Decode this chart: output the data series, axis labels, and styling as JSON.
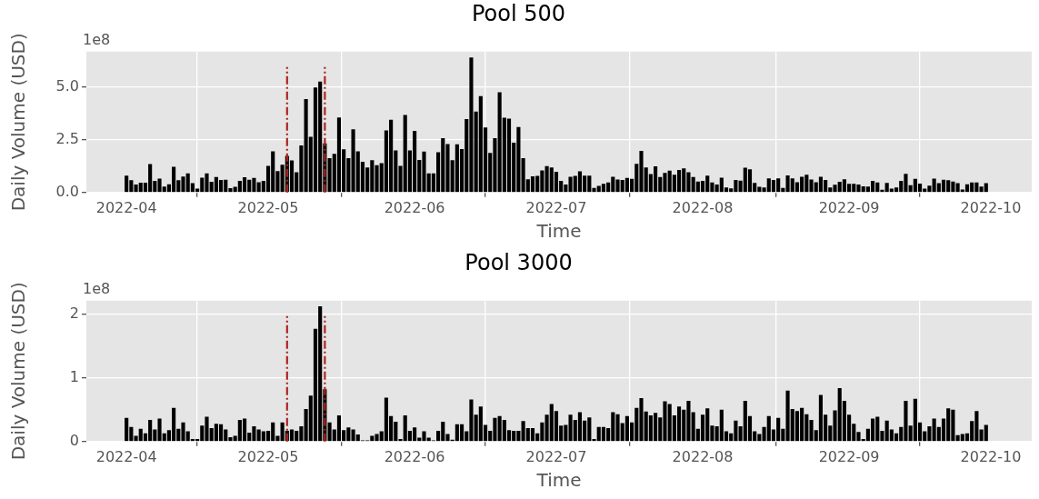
{
  "chart_data": [
    {
      "type": "bar",
      "title": "Pool 500",
      "xlabel": "Time",
      "ylabel": "Daily Volume (USD)",
      "annotations": [
        "1e8"
      ],
      "color": "#000000",
      "grid": true,
      "xlim": [
        "2022-03-23T12:00",
        "2022-10-09T16:00"
      ],
      "xticks": [
        "2022-04",
        "2022-05",
        "2022-06",
        "2022-07",
        "2022-08",
        "2022-09",
        "2022-10"
      ],
      "ylim": [
        0,
        6.67
      ],
      "yticks": [
        {
          "value": 0,
          "label": "0.0"
        },
        {
          "value": 2.5,
          "label": "2.5"
        },
        {
          "value": 5,
          "label": "5.0"
        }
      ],
      "ref_lines": [
        {
          "axis": "x",
          "value": "2022-05-05",
          "color": "#b22222",
          "line_style": "dashdot"
        },
        {
          "axis": "x",
          "value": "2022-05-13",
          "color": "#b22222",
          "line_style": "dashdot"
        }
      ],
      "x": [
        "2022-04-01",
        "2022-04-02",
        "2022-04-03",
        "2022-04-04",
        "2022-04-05",
        "2022-04-06",
        "2022-04-07",
        "2022-04-08",
        "2022-04-09",
        "2022-04-10",
        "2022-04-11",
        "2022-04-12",
        "2022-04-13",
        "2022-04-14",
        "2022-04-15",
        "2022-04-16",
        "2022-04-17",
        "2022-04-18",
        "2022-04-19",
        "2022-04-20",
        "2022-04-21",
        "2022-04-22",
        "2022-04-23",
        "2022-04-24",
        "2022-04-25",
        "2022-04-26",
        "2022-04-27",
        "2022-04-28",
        "2022-04-29",
        "2022-04-30",
        "2022-05-01",
        "2022-05-02",
        "2022-05-03",
        "2022-05-04",
        "2022-05-05",
        "2022-05-06",
        "2022-05-07",
        "2022-05-08",
        "2022-05-09",
        "2022-05-10",
        "2022-05-11",
        "2022-05-12",
        "2022-05-13",
        "2022-05-14",
        "2022-05-15",
        "2022-05-16",
        "2022-05-17",
        "2022-05-18",
        "2022-05-19",
        "2022-05-20",
        "2022-05-21",
        "2022-05-22",
        "2022-05-23",
        "2022-05-24",
        "2022-05-25",
        "2022-05-26",
        "2022-05-27",
        "2022-05-28",
        "2022-05-29",
        "2022-05-30",
        "2022-05-31",
        "2022-06-01",
        "2022-06-02",
        "2022-06-03",
        "2022-06-04",
        "2022-06-05",
        "2022-06-06",
        "2022-06-07",
        "2022-06-08",
        "2022-06-09",
        "2022-06-10",
        "2022-06-11",
        "2022-06-12",
        "2022-06-13",
        "2022-06-14",
        "2022-06-15",
        "2022-06-16",
        "2022-06-17",
        "2022-06-18",
        "2022-06-19",
        "2022-06-20",
        "2022-06-21",
        "2022-06-22",
        "2022-06-23",
        "2022-06-24",
        "2022-06-25",
        "2022-06-26",
        "2022-06-27",
        "2022-06-28",
        "2022-06-29",
        "2022-06-30",
        "2022-07-01",
        "2022-07-02",
        "2022-07-03",
        "2022-07-04",
        "2022-07-05",
        "2022-07-06",
        "2022-07-07",
        "2022-07-08",
        "2022-07-09",
        "2022-07-10",
        "2022-07-11",
        "2022-07-12",
        "2022-07-13",
        "2022-07-14",
        "2022-07-15",
        "2022-07-16",
        "2022-07-17",
        "2022-07-18",
        "2022-07-19",
        "2022-07-20",
        "2022-07-21",
        "2022-07-22",
        "2022-07-23",
        "2022-07-24",
        "2022-07-25",
        "2022-07-26",
        "2022-07-27",
        "2022-07-28",
        "2022-07-29",
        "2022-07-30",
        "2022-07-31",
        "2022-08-01",
        "2022-08-02",
        "2022-08-03",
        "2022-08-04",
        "2022-08-05",
        "2022-08-06",
        "2022-08-07",
        "2022-08-08",
        "2022-08-09",
        "2022-08-10",
        "2022-08-11",
        "2022-08-12",
        "2022-08-13",
        "2022-08-14",
        "2022-08-15",
        "2022-08-16",
        "2022-08-17",
        "2022-08-18",
        "2022-08-19",
        "2022-08-20",
        "2022-08-21",
        "2022-08-22",
        "2022-08-23",
        "2022-08-24",
        "2022-08-25",
        "2022-08-26",
        "2022-08-27",
        "2022-08-28",
        "2022-08-29",
        "2022-08-30",
        "2022-08-31",
        "2022-09-01",
        "2022-09-02",
        "2022-09-03",
        "2022-09-04",
        "2022-09-05",
        "2022-09-06",
        "2022-09-07",
        "2022-09-08",
        "2022-09-09",
        "2022-09-10",
        "2022-09-11",
        "2022-09-12",
        "2022-09-13",
        "2022-09-14",
        "2022-09-15",
        "2022-09-16",
        "2022-09-17",
        "2022-09-18",
        "2022-09-19",
        "2022-09-20",
        "2022-09-21",
        "2022-09-22",
        "2022-09-23",
        "2022-09-24",
        "2022-09-25",
        "2022-09-26",
        "2022-09-27",
        "2022-09-28",
        "2022-09-29",
        "2022-09-30"
      ],
      "values": [
        0.8,
        0.58,
        0.38,
        0.46,
        0.46,
        1.35,
        0.55,
        0.66,
        0.28,
        0.39,
        1.22,
        0.58,
        0.76,
        0.91,
        0.44,
        0.18,
        0.7,
        0.91,
        0.51,
        0.73,
        0.59,
        0.6,
        0.21,
        0.27,
        0.55,
        0.72,
        0.6,
        0.69,
        0.49,
        0.55,
        1.26,
        1.95,
        1.01,
        1.31,
        1.73,
        1.52,
        0.96,
        2.23,
        4.42,
        2.64,
        4.97,
        5.25,
        2.33,
        1.63,
        1.83,
        3.55,
        2.05,
        1.63,
        2.99,
        1.95,
        1.45,
        1.19,
        1.53,
        1.29,
        1.39,
        2.94,
        3.44,
        1.99,
        1.26,
        3.67,
        1.99,
        2.92,
        1.54,
        1.94,
        0.91,
        0.91,
        1.91,
        2.57,
        2.29,
        1.53,
        2.28,
        2.06,
        3.48,
        6.39,
        3.83,
        4.56,
        3.08,
        1.87,
        2.57,
        4.75,
        3.54,
        3.5,
        2.36,
        3.1,
        1.63,
        0.63,
        0.77,
        0.79,
        1.05,
        1.25,
        1.19,
        0.98,
        0.55,
        0.38,
        0.74,
        0.79,
        1.0,
        0.8,
        0.8,
        0.22,
        0.31,
        0.41,
        0.48,
        0.74,
        0.62,
        0.59,
        0.69,
        0.65,
        1.36,
        1.97,
        1.19,
        0.87,
        1.24,
        0.73,
        0.93,
        1.04,
        0.84,
        1.07,
        1.14,
        0.96,
        0.73,
        0.52,
        0.55,
        0.8,
        0.48,
        0.38,
        0.7,
        0.24,
        0.2,
        0.59,
        0.56,
        1.17,
        1.1,
        0.45,
        0.27,
        0.24,
        0.67,
        0.59,
        0.67,
        0.22,
        0.81,
        0.67,
        0.49,
        0.74,
        0.84,
        0.62,
        0.49,
        0.74,
        0.59,
        0.24,
        0.37,
        0.51,
        0.63,
        0.41,
        0.41,
        0.38,
        0.29,
        0.28,
        0.55,
        0.48,
        0.13,
        0.45,
        0.18,
        0.24,
        0.55,
        0.88,
        0.35,
        0.65,
        0.42,
        0.18,
        0.32,
        0.66,
        0.44,
        0.6,
        0.58,
        0.52,
        0.44,
        0.14,
        0.39,
        0.48,
        0.48,
        0.28,
        0.44
      ]
    },
    {
      "type": "bar",
      "title": "Pool 3000",
      "xlabel": "Time",
      "ylabel": "Daily Volume (USD)",
      "annotations": [
        "1e8"
      ],
      "color": "#000000",
      "grid": true,
      "xlim": [
        "2022-03-23T12:00",
        "2022-10-09T16:00"
      ],
      "xticks": [
        "2022-04",
        "2022-05",
        "2022-06",
        "2022-07",
        "2022-08",
        "2022-09",
        "2022-10"
      ],
      "ylim": [
        0,
        2.21
      ],
      "yticks": [
        0,
        1,
        2
      ],
      "ref_lines": [
        {
          "axis": "x",
          "value": "2022-05-05",
          "color": "#b22222",
          "line_style": "dashdot"
        },
        {
          "axis": "x",
          "value": "2022-05-13",
          "color": "#b22222",
          "line_style": "dashdot"
        }
      ],
      "x": [
        "2022-04-01",
        "2022-04-02",
        "2022-04-03",
        "2022-04-04",
        "2022-04-05",
        "2022-04-06",
        "2022-04-07",
        "2022-04-08",
        "2022-04-09",
        "2022-04-10",
        "2022-04-11",
        "2022-04-12",
        "2022-04-13",
        "2022-04-14",
        "2022-04-15",
        "2022-04-16",
        "2022-04-17",
        "2022-04-18",
        "2022-04-19",
        "2022-04-20",
        "2022-04-21",
        "2022-04-22",
        "2022-04-23",
        "2022-04-24",
        "2022-04-25",
        "2022-04-26",
        "2022-04-27",
        "2022-04-28",
        "2022-04-29",
        "2022-04-30",
        "2022-05-01",
        "2022-05-02",
        "2022-05-03",
        "2022-05-04",
        "2022-05-05",
        "2022-05-06",
        "2022-05-07",
        "2022-05-08",
        "2022-05-09",
        "2022-05-10",
        "2022-05-11",
        "2022-05-12",
        "2022-05-13",
        "2022-05-14",
        "2022-05-15",
        "2022-05-16",
        "2022-05-17",
        "2022-05-18",
        "2022-05-19",
        "2022-05-20",
        "2022-05-21",
        "2022-05-22",
        "2022-05-23",
        "2022-05-24",
        "2022-05-25",
        "2022-05-26",
        "2022-05-27",
        "2022-05-28",
        "2022-05-29",
        "2022-05-30",
        "2022-05-31",
        "2022-06-01",
        "2022-06-02",
        "2022-06-03",
        "2022-06-04",
        "2022-06-05",
        "2022-06-06",
        "2022-06-07",
        "2022-06-08",
        "2022-06-09",
        "2022-06-10",
        "2022-06-11",
        "2022-06-12",
        "2022-06-13",
        "2022-06-14",
        "2022-06-15",
        "2022-06-16",
        "2022-06-17",
        "2022-06-18",
        "2022-06-19",
        "2022-06-20",
        "2022-06-21",
        "2022-06-22",
        "2022-06-23",
        "2022-06-24",
        "2022-06-25",
        "2022-06-26",
        "2022-06-27",
        "2022-06-28",
        "2022-06-29",
        "2022-06-30",
        "2022-07-01",
        "2022-07-02",
        "2022-07-03",
        "2022-07-04",
        "2022-07-05",
        "2022-07-06",
        "2022-07-07",
        "2022-07-08",
        "2022-07-09",
        "2022-07-10",
        "2022-07-11",
        "2022-07-12",
        "2022-07-13",
        "2022-07-14",
        "2022-07-15",
        "2022-07-16",
        "2022-07-17",
        "2022-07-18",
        "2022-07-19",
        "2022-07-20",
        "2022-07-21",
        "2022-07-22",
        "2022-07-23",
        "2022-07-24",
        "2022-07-25",
        "2022-07-26",
        "2022-07-27",
        "2022-07-28",
        "2022-07-29",
        "2022-07-30",
        "2022-07-31",
        "2022-08-01",
        "2022-08-02",
        "2022-08-03",
        "2022-08-04",
        "2022-08-05",
        "2022-08-06",
        "2022-08-07",
        "2022-08-08",
        "2022-08-09",
        "2022-08-10",
        "2022-08-11",
        "2022-08-12",
        "2022-08-13",
        "2022-08-14",
        "2022-08-15",
        "2022-08-16",
        "2022-08-17",
        "2022-08-18",
        "2022-08-19",
        "2022-08-20",
        "2022-08-21",
        "2022-08-22",
        "2022-08-23",
        "2022-08-24",
        "2022-08-25",
        "2022-08-26",
        "2022-08-27",
        "2022-08-28",
        "2022-08-29",
        "2022-08-30",
        "2022-08-31",
        "2022-09-01",
        "2022-09-02",
        "2022-09-03",
        "2022-09-04",
        "2022-09-05",
        "2022-09-06",
        "2022-09-07",
        "2022-09-08",
        "2022-09-09",
        "2022-09-10",
        "2022-09-11",
        "2022-09-12",
        "2022-09-13",
        "2022-09-14",
        "2022-09-15",
        "2022-09-16",
        "2022-09-17",
        "2022-09-18",
        "2022-09-19",
        "2022-09-20",
        "2022-09-21",
        "2022-09-22",
        "2022-09-23",
        "2022-09-24",
        "2022-09-25",
        "2022-09-26",
        "2022-09-27",
        "2022-09-28",
        "2022-09-29",
        "2022-09-30"
      ],
      "values": [
        0.37,
        0.23,
        0.09,
        0.2,
        0.13,
        0.34,
        0.19,
        0.36,
        0.13,
        0.18,
        0.53,
        0.2,
        0.3,
        0.16,
        0.04,
        0.04,
        0.25,
        0.39,
        0.21,
        0.28,
        0.27,
        0.19,
        0.07,
        0.09,
        0.34,
        0.36,
        0.14,
        0.24,
        0.19,
        0.16,
        0.17,
        0.3,
        0.09,
        0.3,
        0.17,
        0.19,
        0.17,
        0.24,
        0.51,
        0.72,
        1.77,
        2.12,
        0.82,
        0.3,
        0.19,
        0.41,
        0.18,
        0.22,
        0.19,
        0.11,
        0.02,
        0.02,
        0.09,
        0.12,
        0.16,
        0.69,
        0.4,
        0.31,
        0.04,
        0.41,
        0.17,
        0.22,
        0.06,
        0.16,
        0.06,
        0.02,
        0.17,
        0.31,
        0.12,
        0.03,
        0.27,
        0.27,
        0.16,
        0.66,
        0.42,
        0.55,
        0.26,
        0.17,
        0.37,
        0.4,
        0.34,
        0.18,
        0.17,
        0.17,
        0.32,
        0.21,
        0.21,
        0.13,
        0.3,
        0.42,
        0.59,
        0.48,
        0.25,
        0.26,
        0.42,
        0.34,
        0.46,
        0.33,
        0.38,
        0.04,
        0.23,
        0.23,
        0.21,
        0.46,
        0.43,
        0.29,
        0.4,
        0.3,
        0.53,
        0.68,
        0.47,
        0.41,
        0.45,
        0.38,
        0.63,
        0.59,
        0.41,
        0.55,
        0.5,
        0.64,
        0.46,
        0.2,
        0.42,
        0.52,
        0.25,
        0.24,
        0.5,
        0.16,
        0.13,
        0.33,
        0.24,
        0.64,
        0.4,
        0.16,
        0.12,
        0.23,
        0.4,
        0.19,
        0.37,
        0.2,
        0.8,
        0.51,
        0.48,
        0.53,
        0.43,
        0.34,
        0.18,
        0.73,
        0.42,
        0.25,
        0.49,
        0.84,
        0.64,
        0.42,
        0.28,
        0.15,
        0.04,
        0.2,
        0.36,
        0.39,
        0.17,
        0.33,
        0.19,
        0.13,
        0.23,
        0.64,
        0.25,
        0.67,
        0.3,
        0.16,
        0.24,
        0.36,
        0.23,
        0.36,
        0.52,
        0.5,
        0.1,
        0.12,
        0.13,
        0.32,
        0.48,
        0.19,
        0.26
      ]
    }
  ]
}
